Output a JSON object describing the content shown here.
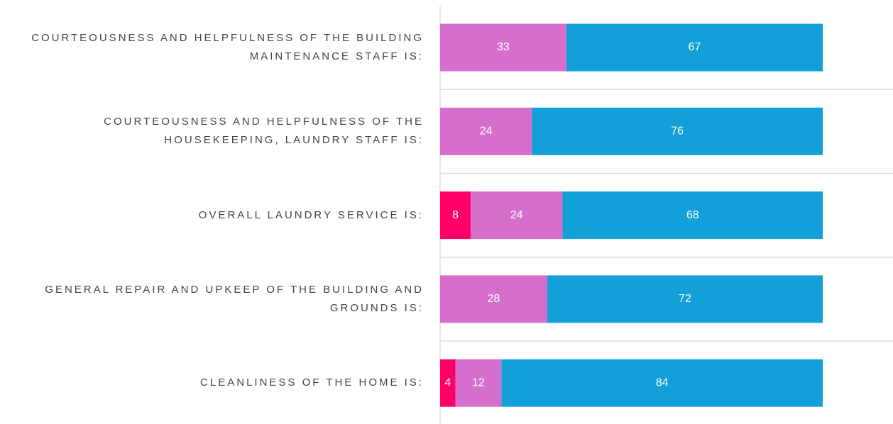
{
  "chart_data": {
    "type": "stacked-bar-horizontal",
    "categories": [
      "COURTEOUSNESS AND HELPFULNESS OF THE BUILDING MAINTENANCE STAFF IS:",
      "COURTEOUSNESS AND HELPFULNESS OF THE HOUSEKEEPING, LAUNDRY STAFF IS:",
      "OVERALL LAUNDRY SERVICE IS:",
      "GENERAL REPAIR AND UPKEEP OF THE BUILDING AND GROUNDS IS:",
      "CLEANLINESS OF THE HOME IS:"
    ],
    "series": [
      {
        "color": "#ff0066",
        "values": [
          null,
          null,
          8,
          null,
          4
        ]
      },
      {
        "color": "#d66fcc",
        "values": [
          33,
          24,
          24,
          28,
          12
        ]
      },
      {
        "color": "#13a0d8",
        "values": [
          67,
          76,
          68,
          72,
          84
        ]
      }
    ],
    "xlim": [
      0,
      100
    ]
  }
}
